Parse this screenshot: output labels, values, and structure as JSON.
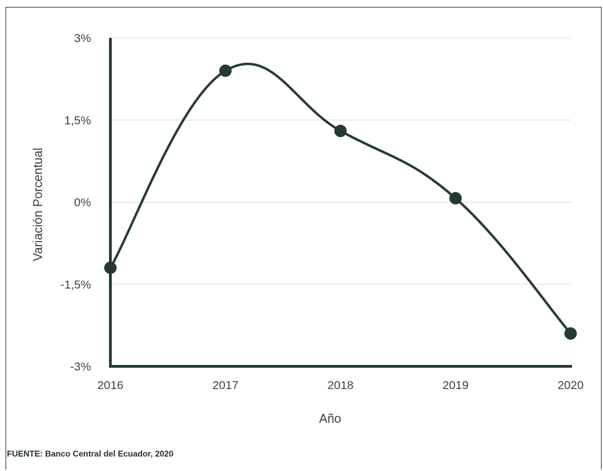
{
  "chart_data": {
    "type": "line",
    "x": [
      "2016",
      "2017",
      "2018",
      "2019",
      "2020"
    ],
    "series": [
      {
        "values": [
          -1.2,
          2.4,
          1.3,
          0.07,
          -2.4
        ]
      }
    ],
    "xlabel": "Año",
    "ylabel": "Variación Porcentual",
    "ylim": [
      -3,
      3
    ],
    "yticks": [
      {
        "value": 3,
        "label": "3%"
      },
      {
        "value": 1.5,
        "label": "1,5%"
      },
      {
        "value": 0,
        "label": "0%"
      },
      {
        "value": -1.5,
        "label": "-1,5%"
      },
      {
        "value": -3,
        "label": "-3%"
      }
    ],
    "grid": true,
    "line_color": "#243b32",
    "grid_color": "#d8d8d8",
    "axis_color": "#243b32"
  },
  "source": {
    "text": "FUENTE: Banco Central del Ecuador, 2020"
  }
}
